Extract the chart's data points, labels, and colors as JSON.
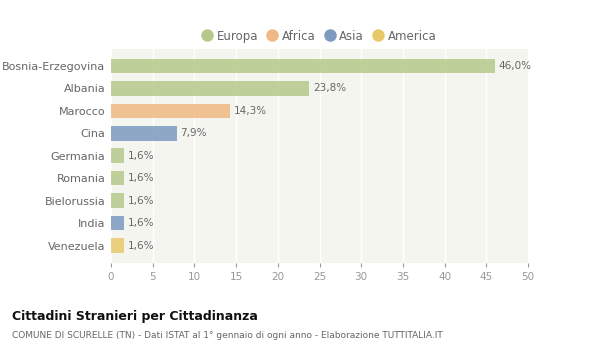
{
  "categories": [
    "Bosnia-Erzegovina",
    "Albania",
    "Marocco",
    "Cina",
    "Germania",
    "Romania",
    "Bielorussia",
    "India",
    "Venezuela"
  ],
  "values": [
    46.0,
    23.8,
    14.3,
    7.9,
    1.6,
    1.6,
    1.6,
    1.6,
    1.6
  ],
  "labels": [
    "46,0%",
    "23,8%",
    "14,3%",
    "7,9%",
    "1,6%",
    "1,6%",
    "1,6%",
    "1,6%",
    "1,6%"
  ],
  "bar_colors": [
    "#b5c98a",
    "#b5c98a",
    "#f0b882",
    "#7d9abf",
    "#b5c98a",
    "#b5c98a",
    "#b5c98a",
    "#7d9abf",
    "#e8c96a"
  ],
  "legend_labels": [
    "Europa",
    "Africa",
    "Asia",
    "America"
  ],
  "legend_colors": [
    "#b5c98a",
    "#f0b882",
    "#7d9abf",
    "#e8c96a"
  ],
  "title": "Cittadini Stranieri per Cittadinanza",
  "subtitle": "COMUNE DI SCURELLE (TN) - Dati ISTAT al 1° gennaio di ogni anno - Elaborazione TUTTITALIA.IT",
  "xlim": [
    0,
    50
  ],
  "xticks": [
    0,
    5,
    10,
    15,
    20,
    25,
    30,
    35,
    40,
    45,
    50
  ],
  "bg_color": "#ffffff",
  "plot_bg_color": "#f5f5f0",
  "grid_color": "#ffffff",
  "tick_color": "#999999",
  "label_color": "#666666",
  "bar_height": 0.65
}
